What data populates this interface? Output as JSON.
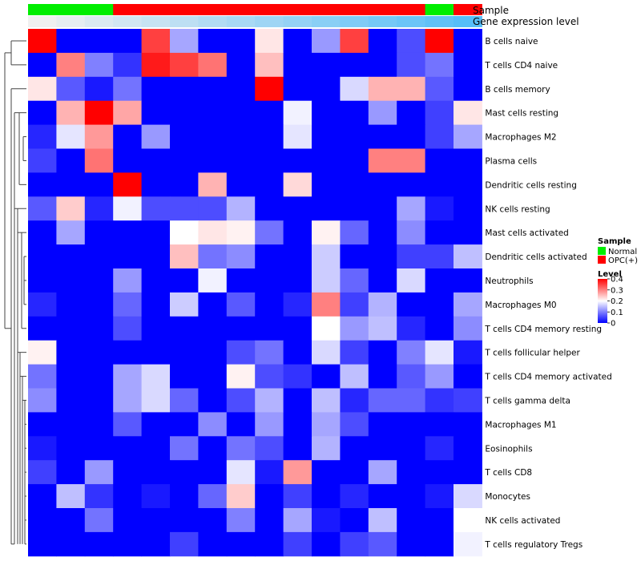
{
  "chart_data": {
    "type": "heatmap",
    "title": "",
    "annotation_tracks": [
      {
        "name": "Sample",
        "legend_title": "Sample",
        "levels": [
          "Normal",
          "OPC(+)"
        ],
        "level_colors": {
          "Normal": "#00ee00",
          "OPC(+)": "#ff0000"
        },
        "values": [
          "Normal",
          "Normal",
          "Normal",
          "OPC(+)",
          "OPC(+)",
          "OPC(+)",
          "OPC(+)",
          "OPC(+)",
          "OPC(+)",
          "OPC(+)",
          "OPC(+)",
          "OPC(+)",
          "OPC(+)",
          "OPC(+)",
          "Normal",
          "OPC(+)"
        ]
      },
      {
        "name": "Gene expression level",
        "values": [
          0.0,
          0.04,
          0.08,
          0.12,
          0.16,
          0.2,
          0.24,
          0.28,
          0.32,
          0.36,
          0.4,
          0.44,
          0.48,
          0.52,
          0.56,
          0.6
        ]
      }
    ],
    "rows": [
      "B cells naive",
      "T cells CD4 naive",
      "B cells memory",
      "Mast cells resting",
      "Macrophages M2",
      "Plasma cells",
      "Dendritic cells resting",
      "NK cells resting",
      "Mast cells activated",
      "Dendritic cells activated",
      "Neutrophils",
      "Macrophages M0",
      "T cells CD4 memory resting",
      "T cells follicular helper",
      "T cells CD4 memory activated",
      "T cells gamma delta",
      "Macrophages M1",
      "Eosinophils",
      "T cells CD8",
      "Monocytes",
      "NK cells activated",
      "T cells regulatory  Tregs"
    ],
    "values": [
      [
        0.4,
        0.0,
        0.0,
        0.0,
        0.35,
        0.13,
        0.0,
        0.0,
        0.22,
        0.0,
        0.12,
        0.35,
        0.0,
        0.06,
        0.4,
        0.0
      ],
      [
        0.0,
        0.3,
        0.1,
        0.04,
        0.38,
        0.35,
        0.31,
        0.0,
        0.25,
        0.0,
        0.0,
        0.0,
        0.0,
        0.06,
        0.09,
        0.0
      ],
      [
        0.22,
        0.07,
        0.02,
        0.09,
        0.0,
        0.0,
        0.0,
        0.0,
        0.4,
        0.0,
        0.0,
        0.17,
        0.26,
        0.26,
        0.07,
        0.0
      ],
      [
        0.0,
        0.26,
        0.4,
        0.27,
        0.0,
        0.0,
        0.0,
        0.0,
        0.0,
        0.19,
        0.0,
        0.0,
        0.12,
        0.0,
        0.05,
        0.22
      ],
      [
        0.03,
        0.18,
        0.28,
        0.0,
        0.12,
        0.0,
        0.0,
        0.0,
        0.0,
        0.18,
        0.0,
        0.0,
        0.0,
        0.0,
        0.05,
        0.13
      ],
      [
        0.05,
        0.0,
        0.31,
        0.0,
        0.0,
        0.0,
        0.0,
        0.0,
        0.0,
        0.0,
        0.0,
        0.0,
        0.3,
        0.3,
        0.0,
        0.0
      ],
      [
        0.0,
        0.0,
        0.0,
        0.4,
        0.0,
        0.0,
        0.26,
        0.0,
        0.0,
        0.23,
        0.0,
        0.0,
        0.0,
        0.0,
        0.0,
        0.0
      ],
      [
        0.07,
        0.24,
        0.03,
        0.19,
        0.06,
        0.06,
        0.06,
        0.14,
        0.0,
        0.0,
        0.0,
        0.0,
        0.0,
        0.13,
        0.02,
        0.0
      ],
      [
        0.0,
        0.13,
        0.0,
        0.0,
        0.0,
        0.2,
        0.22,
        0.21,
        0.09,
        0.0,
        0.21,
        0.08,
        0.0,
        0.11,
        0.0,
        0.0
      ],
      [
        0.0,
        0.0,
        0.0,
        0.0,
        0.0,
        0.25,
        0.09,
        0.11,
        0.0,
        0.0,
        0.16,
        0.0,
        0.0,
        0.05,
        0.05,
        0.15
      ],
      [
        0.0,
        0.0,
        0.0,
        0.12,
        0.0,
        0.0,
        0.19,
        0.0,
        0.0,
        0.0,
        0.16,
        0.08,
        0.0,
        0.17,
        0.0,
        0.0
      ],
      [
        0.03,
        0.0,
        0.0,
        0.08,
        0.0,
        0.16,
        0.0,
        0.07,
        0.0,
        0.03,
        0.3,
        0.05,
        0.14,
        0.0,
        0.0,
        0.13
      ],
      [
        0.0,
        0.0,
        0.0,
        0.06,
        0.0,
        0.0,
        0.0,
        0.0,
        0.0,
        0.0,
        0.2,
        0.12,
        0.15,
        0.03,
        0.0,
        0.11
      ],
      [
        0.21,
        0.0,
        0.0,
        0.0,
        0.0,
        0.0,
        0.0,
        0.06,
        0.09,
        0.0,
        0.17,
        0.05,
        0.0,
        0.1,
        0.18,
        0.02
      ],
      [
        0.09,
        0.0,
        0.0,
        0.13,
        0.17,
        0.0,
        0.0,
        0.21,
        0.06,
        0.04,
        0.0,
        0.15,
        0.0,
        0.07,
        0.12,
        0.0
      ],
      [
        0.11,
        0.0,
        0.0,
        0.13,
        0.17,
        0.08,
        0.0,
        0.06,
        0.14,
        0.0,
        0.15,
        0.03,
        0.08,
        0.08,
        0.04,
        0.05
      ],
      [
        0.0,
        0.0,
        0.0,
        0.07,
        0.0,
        0.0,
        0.11,
        0.0,
        0.12,
        0.0,
        0.13,
        0.06,
        0.0,
        0.0,
        0.0,
        0.0
      ],
      [
        0.02,
        0.0,
        0.0,
        0.0,
        0.0,
        0.09,
        0.0,
        0.09,
        0.06,
        0.0,
        0.14,
        0.0,
        0.0,
        0.0,
        0.03,
        0.0
      ],
      [
        0.05,
        0.0,
        0.12,
        0.0,
        0.0,
        0.0,
        0.0,
        0.18,
        0.02,
        0.28,
        0.0,
        0.0,
        0.13,
        0.0,
        0.0,
        0.0
      ],
      [
        0.0,
        0.15,
        0.04,
        0.0,
        0.02,
        0.0,
        0.08,
        0.24,
        0.0,
        0.05,
        0.0,
        0.03,
        0.0,
        0.0,
        0.02,
        0.17
      ],
      [
        0.0,
        0.0,
        0.09,
        0.0,
        0.0,
        0.0,
        0.0,
        0.1,
        0.0,
        0.13,
        0.02,
        0.0,
        0.15,
        0.0,
        0.0,
        0.2
      ],
      [
        0.0,
        0.0,
        0.0,
        0.0,
        0.0,
        0.05,
        0.0,
        0.0,
        0.0,
        0.05,
        0.0,
        0.05,
        0.07,
        0.0,
        0.0,
        0.19
      ]
    ],
    "color_scale": {
      "legend_title": "Level",
      "min": 0,
      "max": 0.4,
      "ticks": [
        "0.4",
        "0.3",
        "0.2",
        "0.1",
        "0"
      ],
      "tick_values": [
        0.4,
        0.3,
        0.2,
        0.1,
        0
      ],
      "low_color": "#0000ff",
      "mid_color": "#ffffff",
      "high_color": "#ff0000",
      "midpoint": 0.2
    },
    "dendrogram": "rows clustered (left side)"
  }
}
